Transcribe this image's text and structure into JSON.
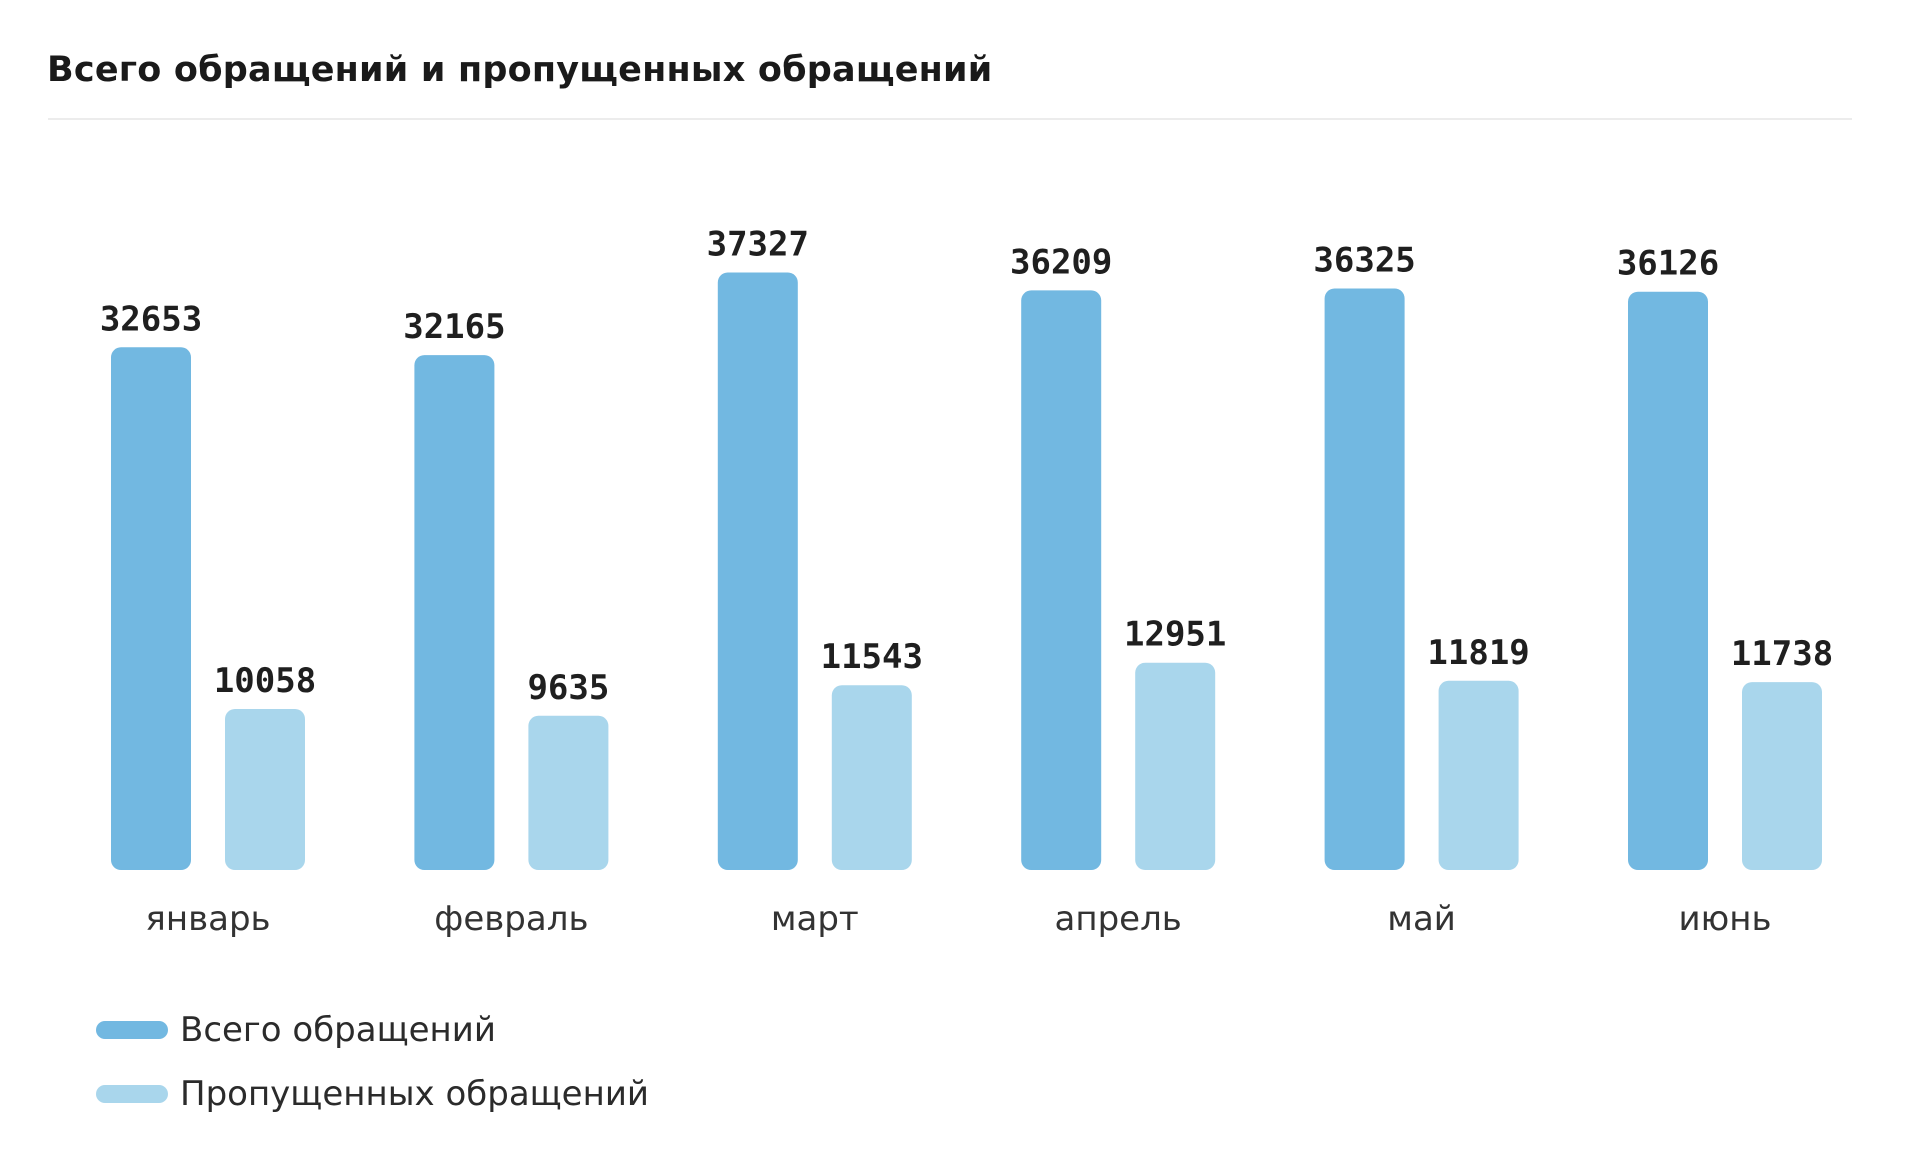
{
  "title": "Всего обращений и пропущенных обращений",
  "colors": {
    "total": "#72b8e1",
    "missed": "#a9d6ec"
  },
  "chart_data": {
    "type": "bar",
    "title": "Всего обращений и пропущенных обращений",
    "xlabel": "",
    "ylabel": "",
    "ylim": [
      0,
      40000
    ],
    "grid": false,
    "legend_position": "bottom-left",
    "categories": [
      "январь",
      "февраль",
      "март",
      "апрель",
      "май",
      "июнь"
    ],
    "series": [
      {
        "name": "Всего обращений",
        "values": [
          32653,
          32165,
          37327,
          36209,
          36325,
          36126
        ]
      },
      {
        "name": "Пропущенных обращений",
        "values": [
          10058,
          9635,
          11543,
          12951,
          11819,
          11738
        ]
      }
    ]
  }
}
